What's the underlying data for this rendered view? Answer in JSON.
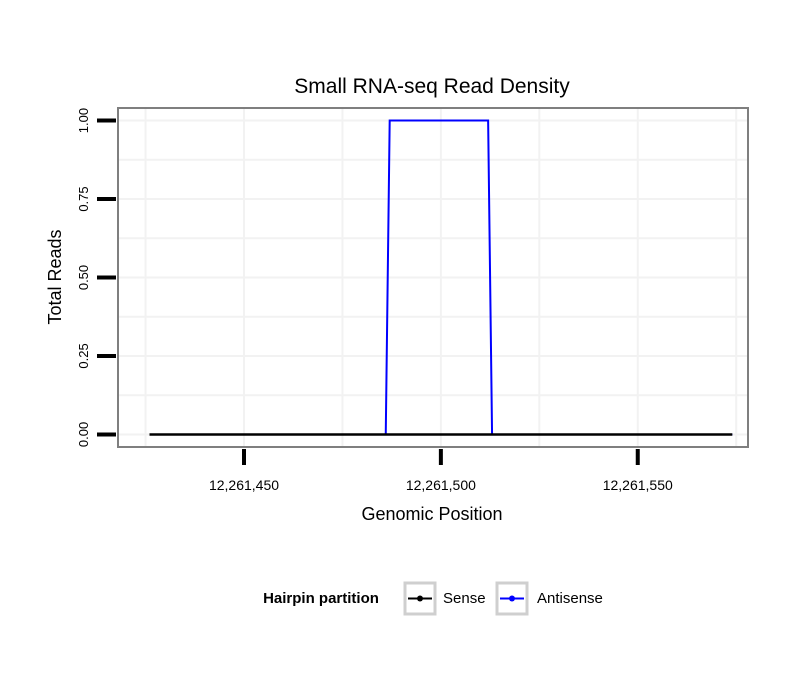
{
  "chart_data": {
    "type": "line",
    "title": "Small RNA-seq Read Density",
    "xlabel": "Genomic Position",
    "ylabel": "Total Reads",
    "xlim": [
      12261418,
      12261578
    ],
    "ylim": [
      -0.04,
      1.04
    ],
    "x_ticks": [
      12261450,
      12261500,
      12261550
    ],
    "x_tick_labels": [
      "12,261,450",
      "12,261,500",
      "12,261,550"
    ],
    "y_ticks": [
      0,
      0.25,
      0.5,
      0.75,
      1
    ],
    "y_tick_labels": [
      "0.00",
      "0.25",
      "0.50",
      "0.75",
      "1.00"
    ],
    "grid": true,
    "legend": {
      "title": "Hairpin partition",
      "position": "bottom",
      "entries": [
        "Sense",
        "Antisense"
      ]
    },
    "series": [
      {
        "name": "Sense",
        "color": "#000000",
        "points": [
          [
            12261426,
            0
          ],
          [
            12261574,
            0
          ]
        ]
      },
      {
        "name": "Antisense",
        "color": "#0000ff",
        "points": [
          [
            12261426,
            0
          ],
          [
            12261486,
            0
          ],
          [
            12261487,
            1
          ],
          [
            12261512,
            1
          ],
          [
            12261513,
            0
          ],
          [
            12261574,
            0
          ]
        ]
      }
    ]
  }
}
